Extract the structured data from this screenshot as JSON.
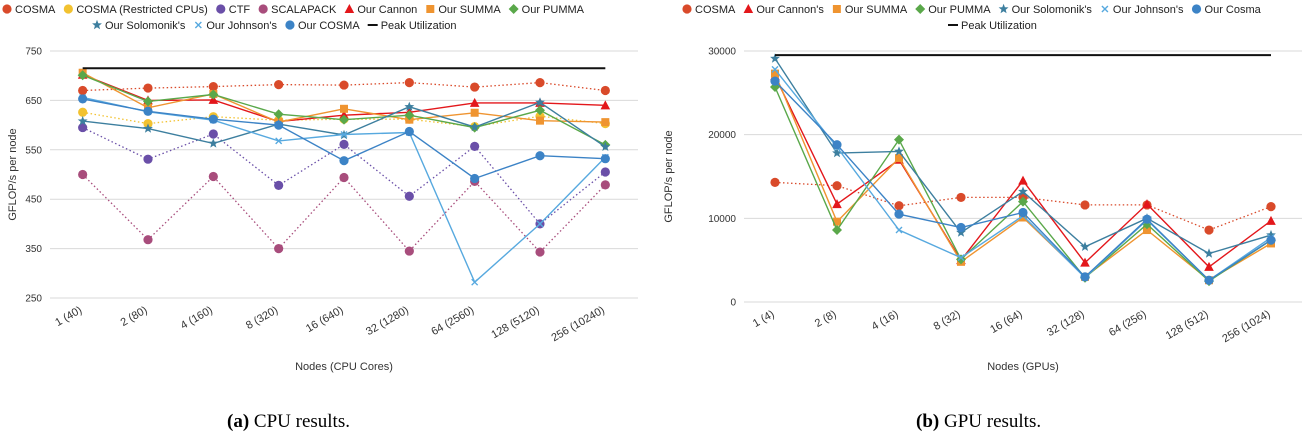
{
  "captions": [
    {
      "label": "(a)",
      "text": "CPU results."
    },
    {
      "label": "(b)",
      "text": "GPU results."
    }
  ],
  "chart_data": [
    {
      "type": "line",
      "title": "",
      "xlabel": "Nodes (CPU Cores)",
      "ylabel": "GFLOP/s per node",
      "categories": [
        "1 (40)",
        "2 (80)",
        "4 (160)",
        "8 (320)",
        "16 (640)",
        "32 (1280)",
        "64 (2560)",
        "128 (5120)",
        "256 (10240)"
      ],
      "ylim": [
        250,
        750
      ],
      "yticks": [
        250,
        350,
        450,
        550,
        650,
        750
      ],
      "grid": true,
      "legend_position": "top",
      "series": [
        {
          "name": "COSMA",
          "color": "#d94a2a",
          "marker": "circle",
          "style": "dotted",
          "values": [
            670,
            675,
            678,
            682,
            681,
            686,
            677,
            686,
            670
          ]
        },
        {
          "name": "COSMA (Restricted CPUs)",
          "color": "#f2c230",
          "marker": "circle",
          "style": "dotted",
          "values": [
            626,
            603,
            617,
            610,
            612,
            612,
            597,
            618,
            603
          ]
        },
        {
          "name": "CTF",
          "color": "#6a4fa8",
          "marker": "circle",
          "style": "dotted",
          "values": [
            595,
            531,
            582,
            478,
            561,
            456,
            557,
            400,
            505
          ]
        },
        {
          "name": "SCALAPACK",
          "color": "#a84d7c",
          "marker": "circle",
          "style": "dotted",
          "values": [
            500,
            368,
            496,
            350,
            494,
            345,
            486,
            343,
            479
          ]
        },
        {
          "name": "Our Cannon",
          "color": "#e3171b",
          "marker": "triangle",
          "style": "solid",
          "values": [
            702,
            650,
            651,
            607,
            620,
            626,
            645,
            645,
            640
          ]
        },
        {
          "name": "Our SUMMA",
          "color": "#ef9430",
          "marker": "square",
          "style": "solid",
          "values": [
            706,
            635,
            663,
            606,
            633,
            611,
            625,
            609,
            606
          ]
        },
        {
          "name": "Our PUMMA",
          "color": "#5aa84a",
          "marker": "diamond",
          "style": "solid",
          "values": [
            701,
            648,
            662,
            622,
            611,
            620,
            595,
            630,
            560
          ]
        },
        {
          "name": "Our Solomonik's",
          "color": "#3d7f9f",
          "marker": "star",
          "style": "solid",
          "values": [
            608,
            593,
            563,
            602,
            580,
            637,
            596,
            646,
            556
          ]
        },
        {
          "name": "Our Johnson's",
          "color": "#57a9df",
          "marker": "x",
          "style": "solid",
          "values": [
            656,
            627,
            610,
            568,
            581,
            585,
            282,
            400,
            535
          ]
        },
        {
          "name": "Our COSMA",
          "color": "#3c83c6",
          "marker": "circle",
          "style": "solid",
          "values": [
            653,
            628,
            612,
            600,
            528,
            587,
            492,
            538,
            532
          ]
        },
        {
          "name": "Peak Utilization",
          "color": "#111111",
          "marker": "none",
          "style": "solid",
          "values": [
            715,
            715,
            715,
            715,
            715,
            715,
            715,
            715,
            715
          ]
        }
      ]
    },
    {
      "type": "line",
      "title": "",
      "xlabel": "Nodes (GPUs)",
      "ylabel": "GFLOP/s per node",
      "categories": [
        "1 (4)",
        "2 (8)",
        "4 (16)",
        "8 (32)",
        "16 (64)",
        "32 (128)",
        "64 (256)",
        "128 (512)",
        "256 (1024)"
      ],
      "ylim": [
        0,
        30000
      ],
      "yticks": [
        0,
        10000,
        20000,
        30000
      ],
      "grid": true,
      "legend_position": "top",
      "series": [
        {
          "name": "COSMA",
          "color": "#d94a2a",
          "marker": "circle",
          "style": "dotted",
          "values": [
            14300,
            13900,
            11500,
            12500,
            12500,
            11600,
            11600,
            8600,
            11400
          ]
        },
        {
          "name": "Our Cannon's",
          "color": "#e3171b",
          "marker": "triangle",
          "style": "solid",
          "values": [
            27000,
            11700,
            17000,
            5000,
            14500,
            4700,
            11700,
            4200,
            9700
          ]
        },
        {
          "name": "Our SUMMA",
          "color": "#ef9430",
          "marker": "square",
          "style": "solid",
          "values": [
            27300,
            9600,
            17200,
            4800,
            10100,
            3000,
            8600,
            2600,
            7000
          ]
        },
        {
          "name": "Our PUMMA",
          "color": "#5aa84a",
          "marker": "diamond",
          "style": "solid",
          "values": [
            25700,
            8600,
            19400,
            5100,
            12000,
            2900,
            9300,
            2500,
            7400
          ]
        },
        {
          "name": "Our Solomonik's",
          "color": "#3d7f9f",
          "marker": "star",
          "style": "solid",
          "values": [
            29100,
            17800,
            18000,
            8300,
            13200,
            6600,
            10000,
            5800,
            8000
          ]
        },
        {
          "name": "Our Johnson's",
          "color": "#57a9df",
          "marker": "x",
          "style": "solid",
          "values": [
            27800,
            18500,
            8600,
            5300,
            10300,
            2900,
            9800,
            2600,
            7700
          ]
        },
        {
          "name": "Our Cosma",
          "color": "#3c83c6",
          "marker": "circle",
          "style": "solid",
          "values": [
            26400,
            18800,
            10500,
            8900,
            10700,
            3000,
            9900,
            2600,
            7400
          ]
        },
        {
          "name": "Peak Utilization",
          "color": "#111111",
          "marker": "none",
          "style": "solid",
          "values": [
            29500,
            29500,
            29500,
            29500,
            29500,
            29500,
            29500,
            29500,
            29500
          ]
        }
      ]
    }
  ]
}
